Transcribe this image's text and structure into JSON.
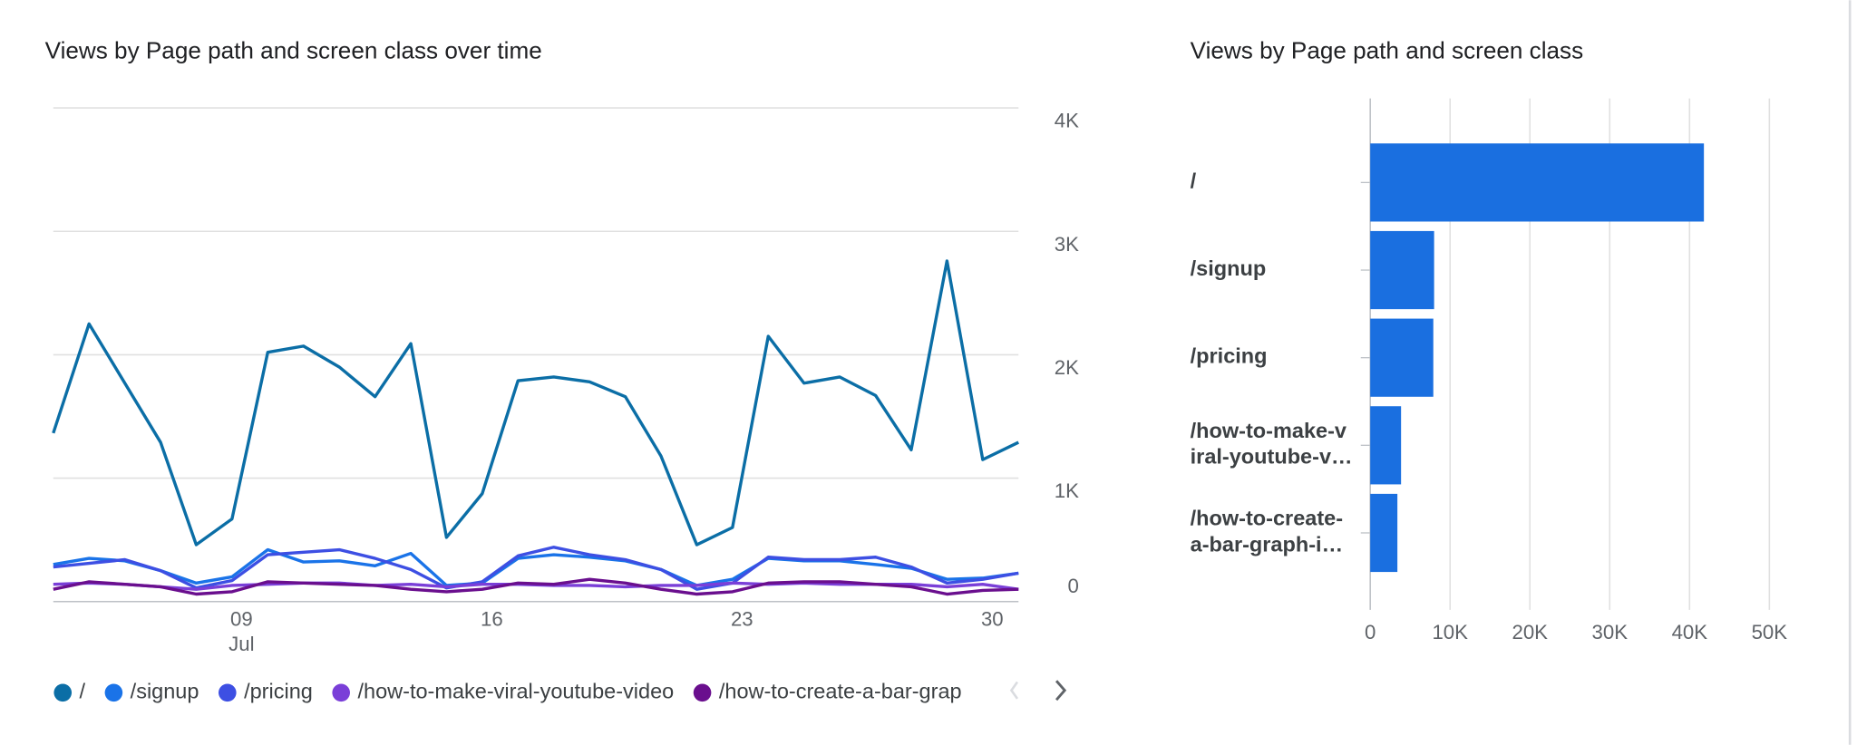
{
  "chart_data": [
    {
      "type": "line",
      "title": "Views by Page path and screen class over time",
      "categories": [
        null,
        null,
        null,
        null,
        null,
        "09\nJul",
        null,
        null,
        null,
        null,
        null,
        null,
        "16",
        null,
        null,
        null,
        null,
        null,
        null,
        "23",
        null,
        null,
        null,
        null,
        null,
        null,
        "30",
        null
      ],
      "ylim": [
        0,
        4000
      ],
      "yticks": [
        0,
        {
          "value": 1000,
          "label": "1K"
        },
        {
          "value": 2000,
          "label": "2K"
        },
        {
          "value": 3000,
          "label": "3K"
        },
        {
          "value": 4000,
          "label": "4K"
        }
      ],
      "grid": true,
      "series": [
        {
          "name": "/",
          "color": "#0b6ea6",
          "values": [
            1365,
            2250,
            1770,
            1290,
            460,
            670,
            2020,
            2070,
            1900,
            1660,
            2090,
            520,
            875,
            1790,
            1820,
            1780,
            1660,
            1180,
            460,
            600,
            2150,
            1770,
            1820,
            1670,
            1230,
            2760,
            1150,
            1290
          ]
        },
        {
          "name": "/signup",
          "color": "#1a73e8",
          "values": [
            300,
            350,
            330,
            250,
            150,
            200,
            420,
            320,
            330,
            290,
            390,
            130,
            150,
            350,
            380,
            360,
            330,
            260,
            130,
            180,
            350,
            330,
            330,
            300,
            270,
            180,
            190,
            230
          ]
        },
        {
          "name": "/pricing",
          "color": "#3d4fe3",
          "values": [
            280,
            310,
            340,
            250,
            110,
            170,
            380,
            400,
            420,
            350,
            260,
            110,
            160,
            370,
            440,
            380,
            340,
            260,
            100,
            150,
            360,
            340,
            340,
            360,
            280,
            150,
            180,
            230
          ]
        },
        {
          "name": "/how-to-make-viral-youtube-video",
          "color": "#7a3fd8",
          "values": [
            140,
            150,
            140,
            120,
            100,
            130,
            140,
            150,
            150,
            130,
            140,
            120,
            140,
            140,
            130,
            130,
            120,
            130,
            130,
            150,
            140,
            150,
            140,
            140,
            140,
            120,
            140,
            100
          ]
        },
        {
          "name": "/how-to-create-a-bar-grap",
          "color": "#6a0f8e",
          "values": [
            100,
            160,
            140,
            120,
            60,
            80,
            160,
            150,
            140,
            130,
            100,
            80,
            100,
            150,
            140,
            180,
            150,
            100,
            60,
            80,
            150,
            160,
            160,
            140,
            120,
            60,
            90,
            100
          ]
        }
      ]
    },
    {
      "type": "hbar",
      "title": "Views by Page path and screen class",
      "categories": [
        "/",
        "/signup",
        "/pricing",
        "/how-to-make-v\niral-youtube-v…",
        "/how-to-create-\na-bar-graph-i…"
      ],
      "values": [
        41800,
        8000,
        7900,
        3860,
        3400
      ],
      "color": "#1a6fe0",
      "xlim": [
        0,
        50000
      ],
      "xticks": [
        0,
        {
          "value": 10000,
          "label": "10K"
        },
        {
          "value": 20000,
          "label": "20K"
        },
        {
          "value": 30000,
          "label": "30K"
        },
        {
          "value": 40000,
          "label": "40K"
        },
        {
          "value": 50000,
          "label": "50K"
        }
      ],
      "grid": true
    }
  ]
}
